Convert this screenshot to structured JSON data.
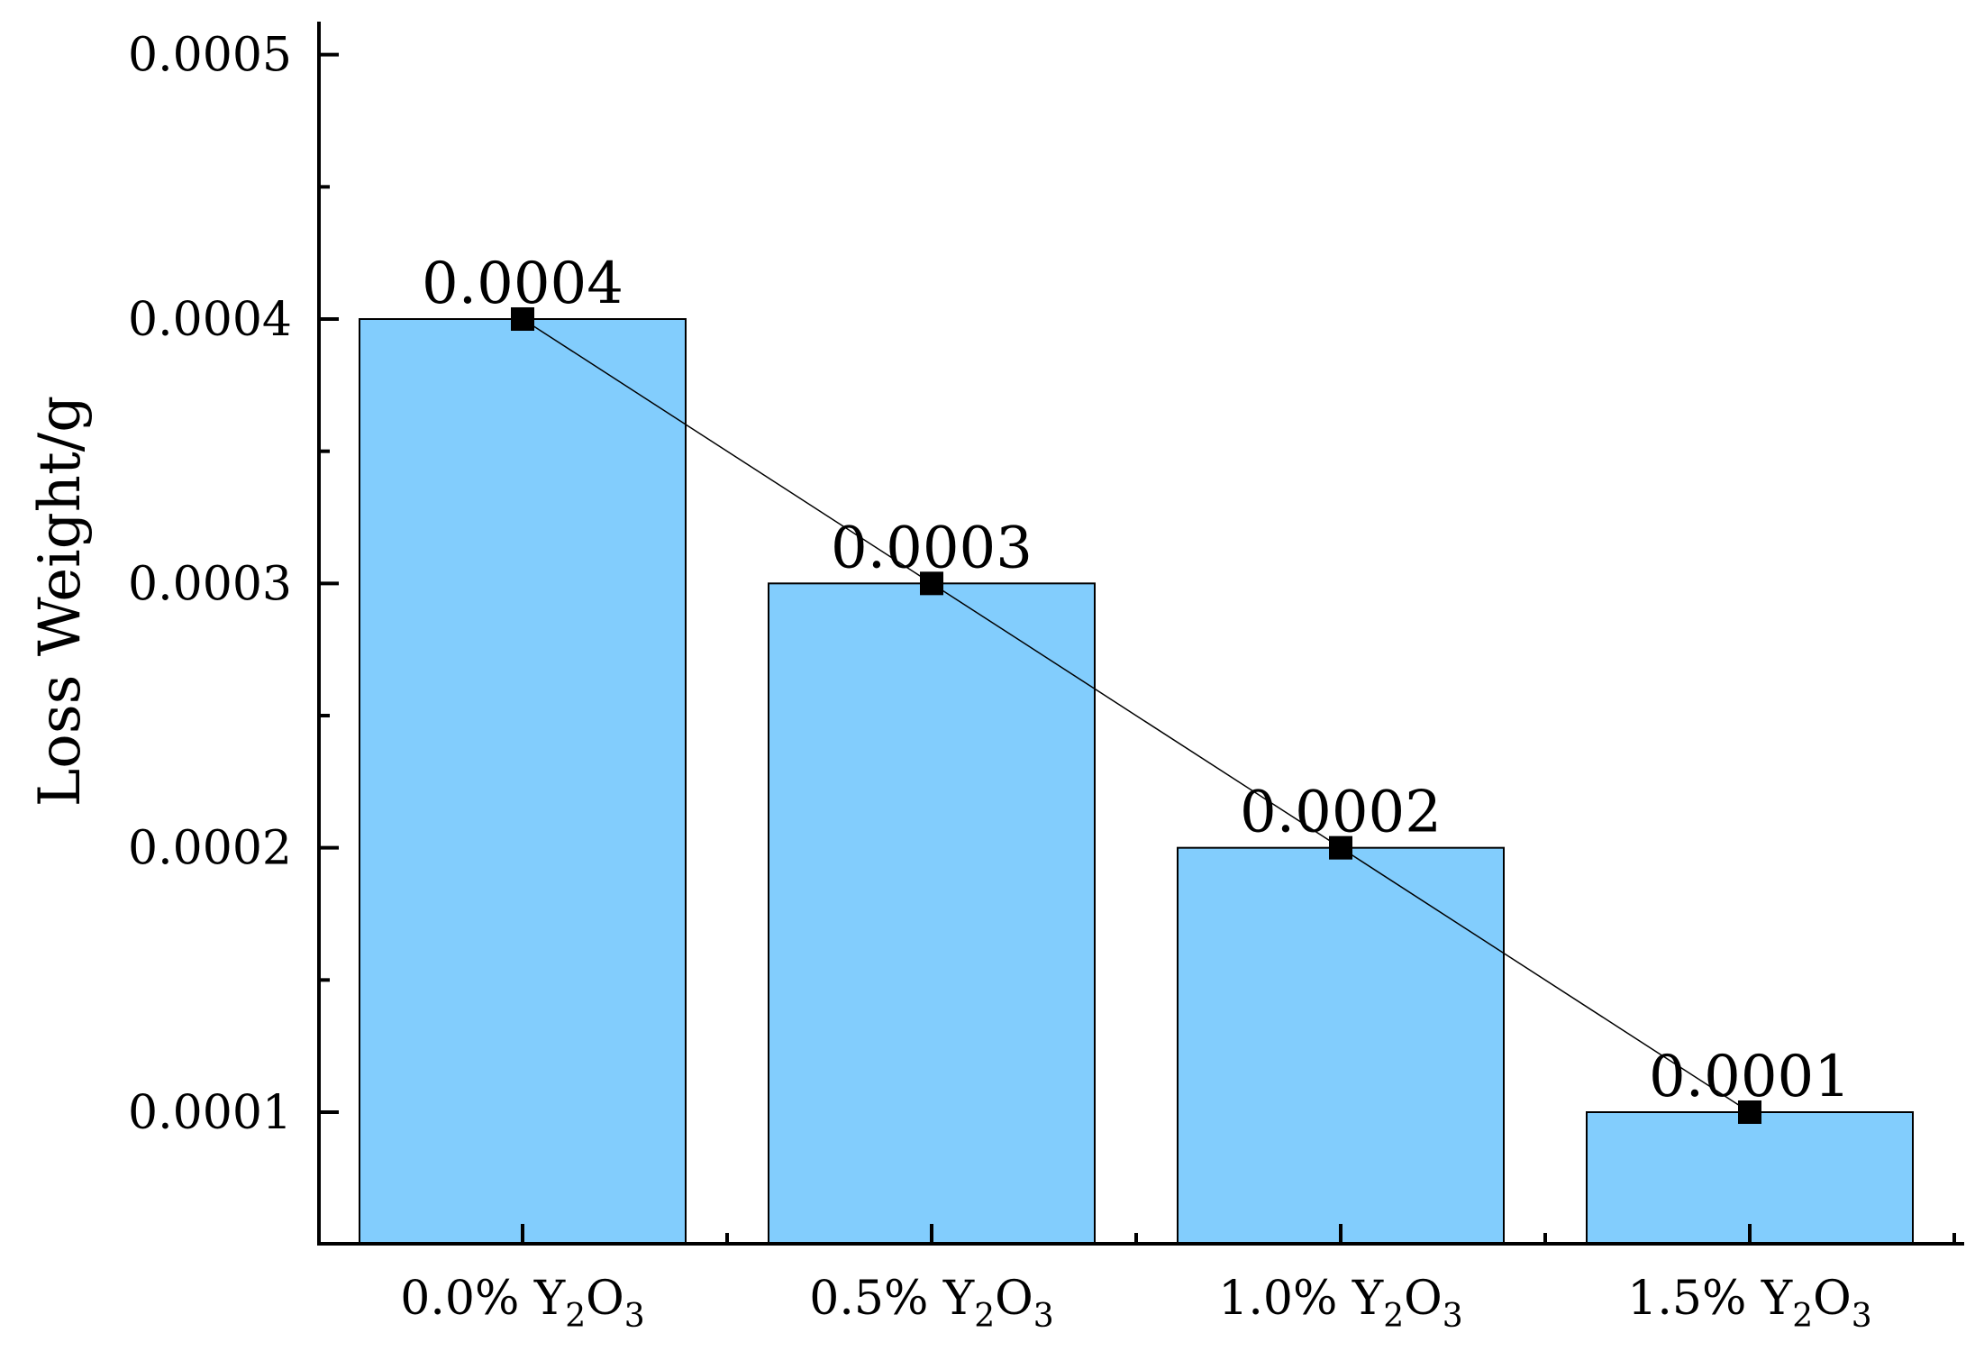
{
  "chart_data": {
    "type": "bar",
    "categories": [
      {
        "main": "0.0% Y",
        "sub1": "2",
        "mid": "O",
        "sub2": "3"
      },
      {
        "main": "0.5% Y",
        "sub1": "2",
        "mid": "O",
        "sub2": "3"
      },
      {
        "main": "1.0% Y",
        "sub1": "2",
        "mid": "O",
        "sub2": "3"
      },
      {
        "main": "1.5% Y",
        "sub1": "2",
        "mid": "O",
        "sub2": "3"
      }
    ],
    "values": [
      0.0004,
      0.0003,
      0.0002,
      0.0001
    ],
    "data_labels": [
      "0.0004",
      "0.0003",
      "0.0002",
      "0.0001"
    ],
    "ylabel": "Loss Weight/g",
    "ylim": [
      5e-05,
      0.0005
    ],
    "yticks": [
      0.0001,
      0.0002,
      0.0003,
      0.0004,
      0.0005
    ],
    "ytick_labels": [
      "0.0001",
      "0.0002",
      "0.0003",
      "0.0004",
      "0.0005"
    ],
    "overlay": "line-with-square-markers",
    "bar_color": "#82CDFD",
    "line_color": "#000000",
    "grid": false,
    "legend": "none"
  }
}
